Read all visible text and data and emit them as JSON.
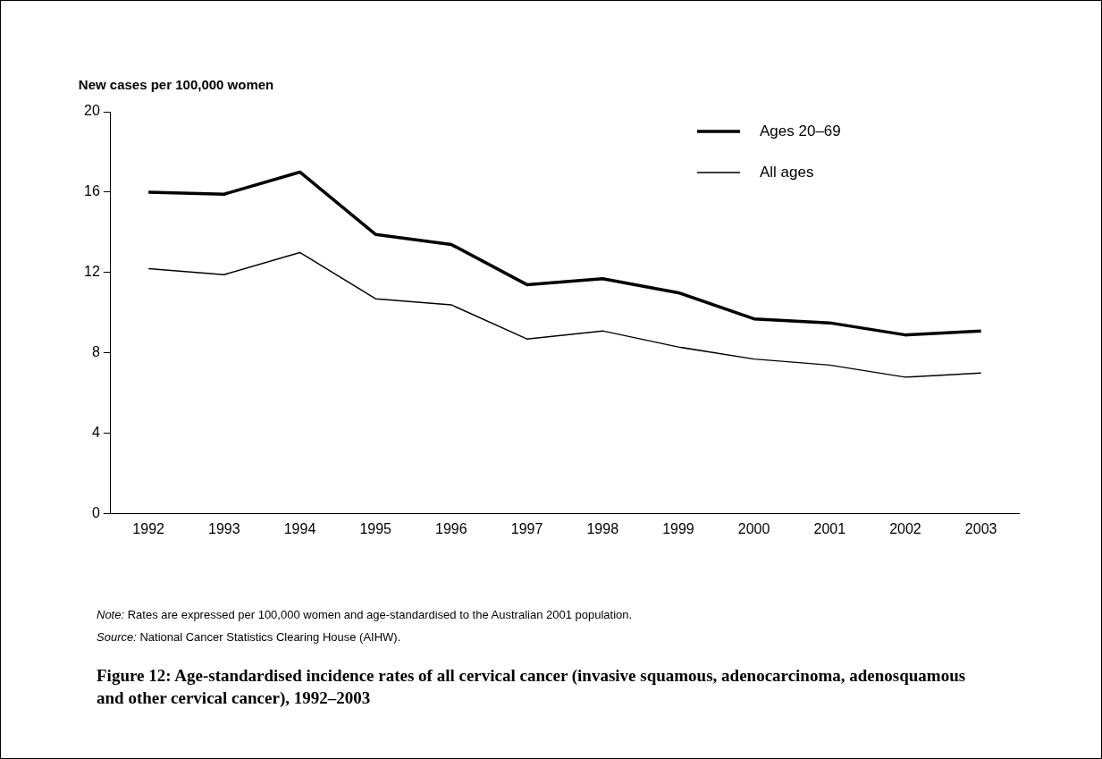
{
  "chart_data": {
    "type": "line",
    "ylabel": "New cases per 100,000 women",
    "title": "Figure 12: Age-standardised incidence rates of all cervical cancer (invasive squamous, adenocarcinoma, adenosquamous and other cervical cancer), 1992–2003",
    "categories": [
      "1992",
      "1993",
      "1994",
      "1995",
      "1996",
      "1997",
      "1998",
      "1999",
      "2000",
      "2001",
      "2002",
      "2003"
    ],
    "series": [
      {
        "name": "Ages 20–69",
        "color": "#000000",
        "values": [
          16.0,
          15.9,
          17.0,
          13.9,
          13.4,
          11.4,
          11.7,
          11.0,
          9.7,
          9.5,
          8.9,
          9.1
        ]
      },
      {
        "name": "All ages",
        "color": "#000000",
        "values": [
          12.2,
          11.9,
          13.0,
          10.7,
          10.4,
          8.7,
          9.1,
          8.3,
          7.7,
          7.4,
          6.8,
          7.0
        ]
      }
    ],
    "ylim": [
      0,
      20
    ],
    "yticks": [
      0,
      4,
      8,
      12,
      16,
      20
    ],
    "grid": false,
    "legend": "top right",
    "marker": "none",
    "line_style": "solid",
    "annotations": [
      "Note: Rates are expressed per 100,000 women and age-standardised to the Australian 2001 population.",
      "Source: National Cancer Statistics Clearing House (AIHW)."
    ]
  }
}
